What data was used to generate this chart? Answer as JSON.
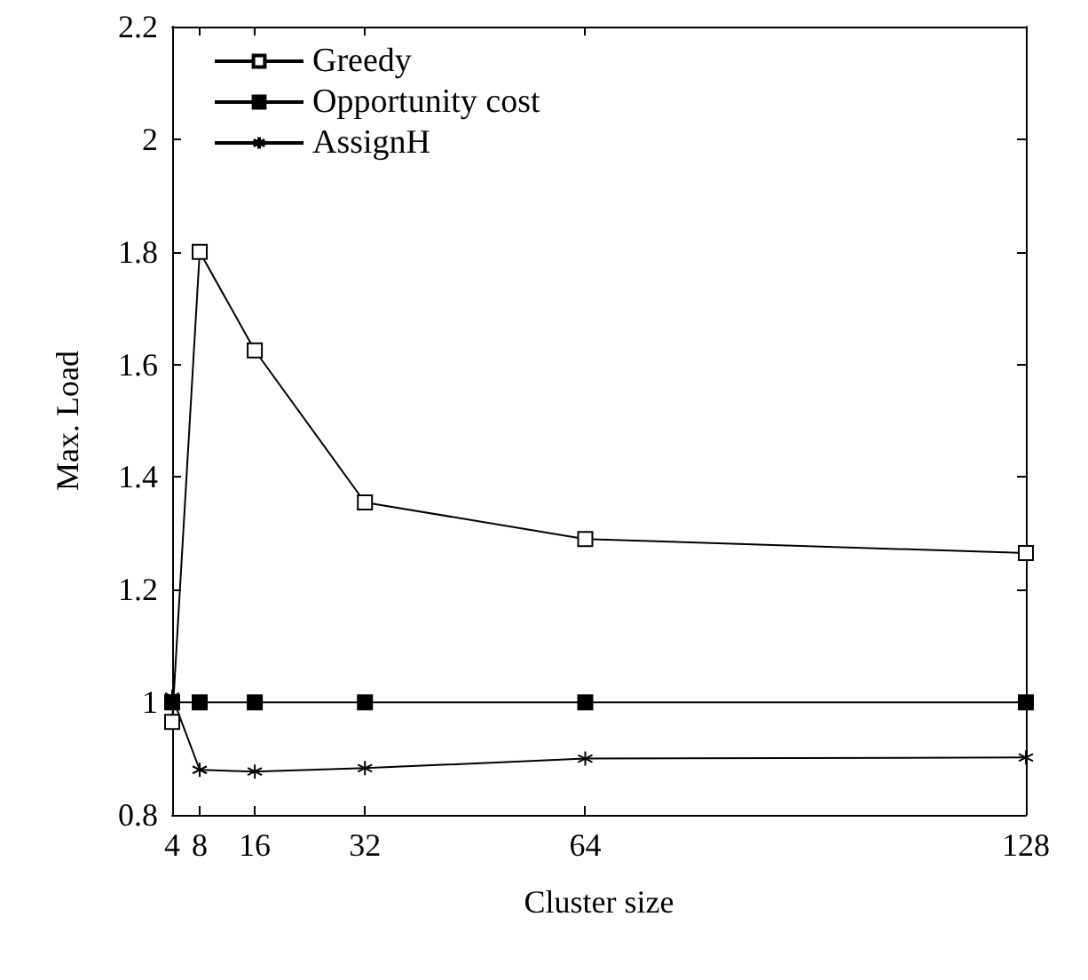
{
  "chart_data": {
    "type": "line",
    "xlabel": "Cluster size",
    "ylabel": "Max. Load",
    "x": [
      4,
      8,
      16,
      32,
      64,
      128
    ],
    "series": [
      {
        "name": "Greedy",
        "color": "#000000",
        "marker": "square",
        "values": [
          0.965,
          1.8,
          1.625,
          1.355,
          1.29,
          1.265
        ]
      },
      {
        "name": "Opportunity cost",
        "color": "#000000",
        "marker": "square",
        "values": [
          1,
          1,
          1,
          1,
          1,
          1
        ]
      },
      {
        "name": "AssignH",
        "color": "#000000",
        "marker": "cross",
        "values": [
          1.01,
          0.88,
          0.877,
          0.883,
          0.9,
          0.902
        ]
      }
    ],
    "xlim": [
      4,
      128
    ],
    "xticks": [
      4,
      8,
      16,
      32,
      64,
      128
    ],
    "ylim": [
      0.8,
      2.2
    ],
    "yticks": [
      0.8,
      1,
      1.2,
      1.4,
      1.6,
      1.8,
      2,
      2.2
    ],
    "grid": false,
    "legend": "top left",
    "line_style": "solid"
  }
}
